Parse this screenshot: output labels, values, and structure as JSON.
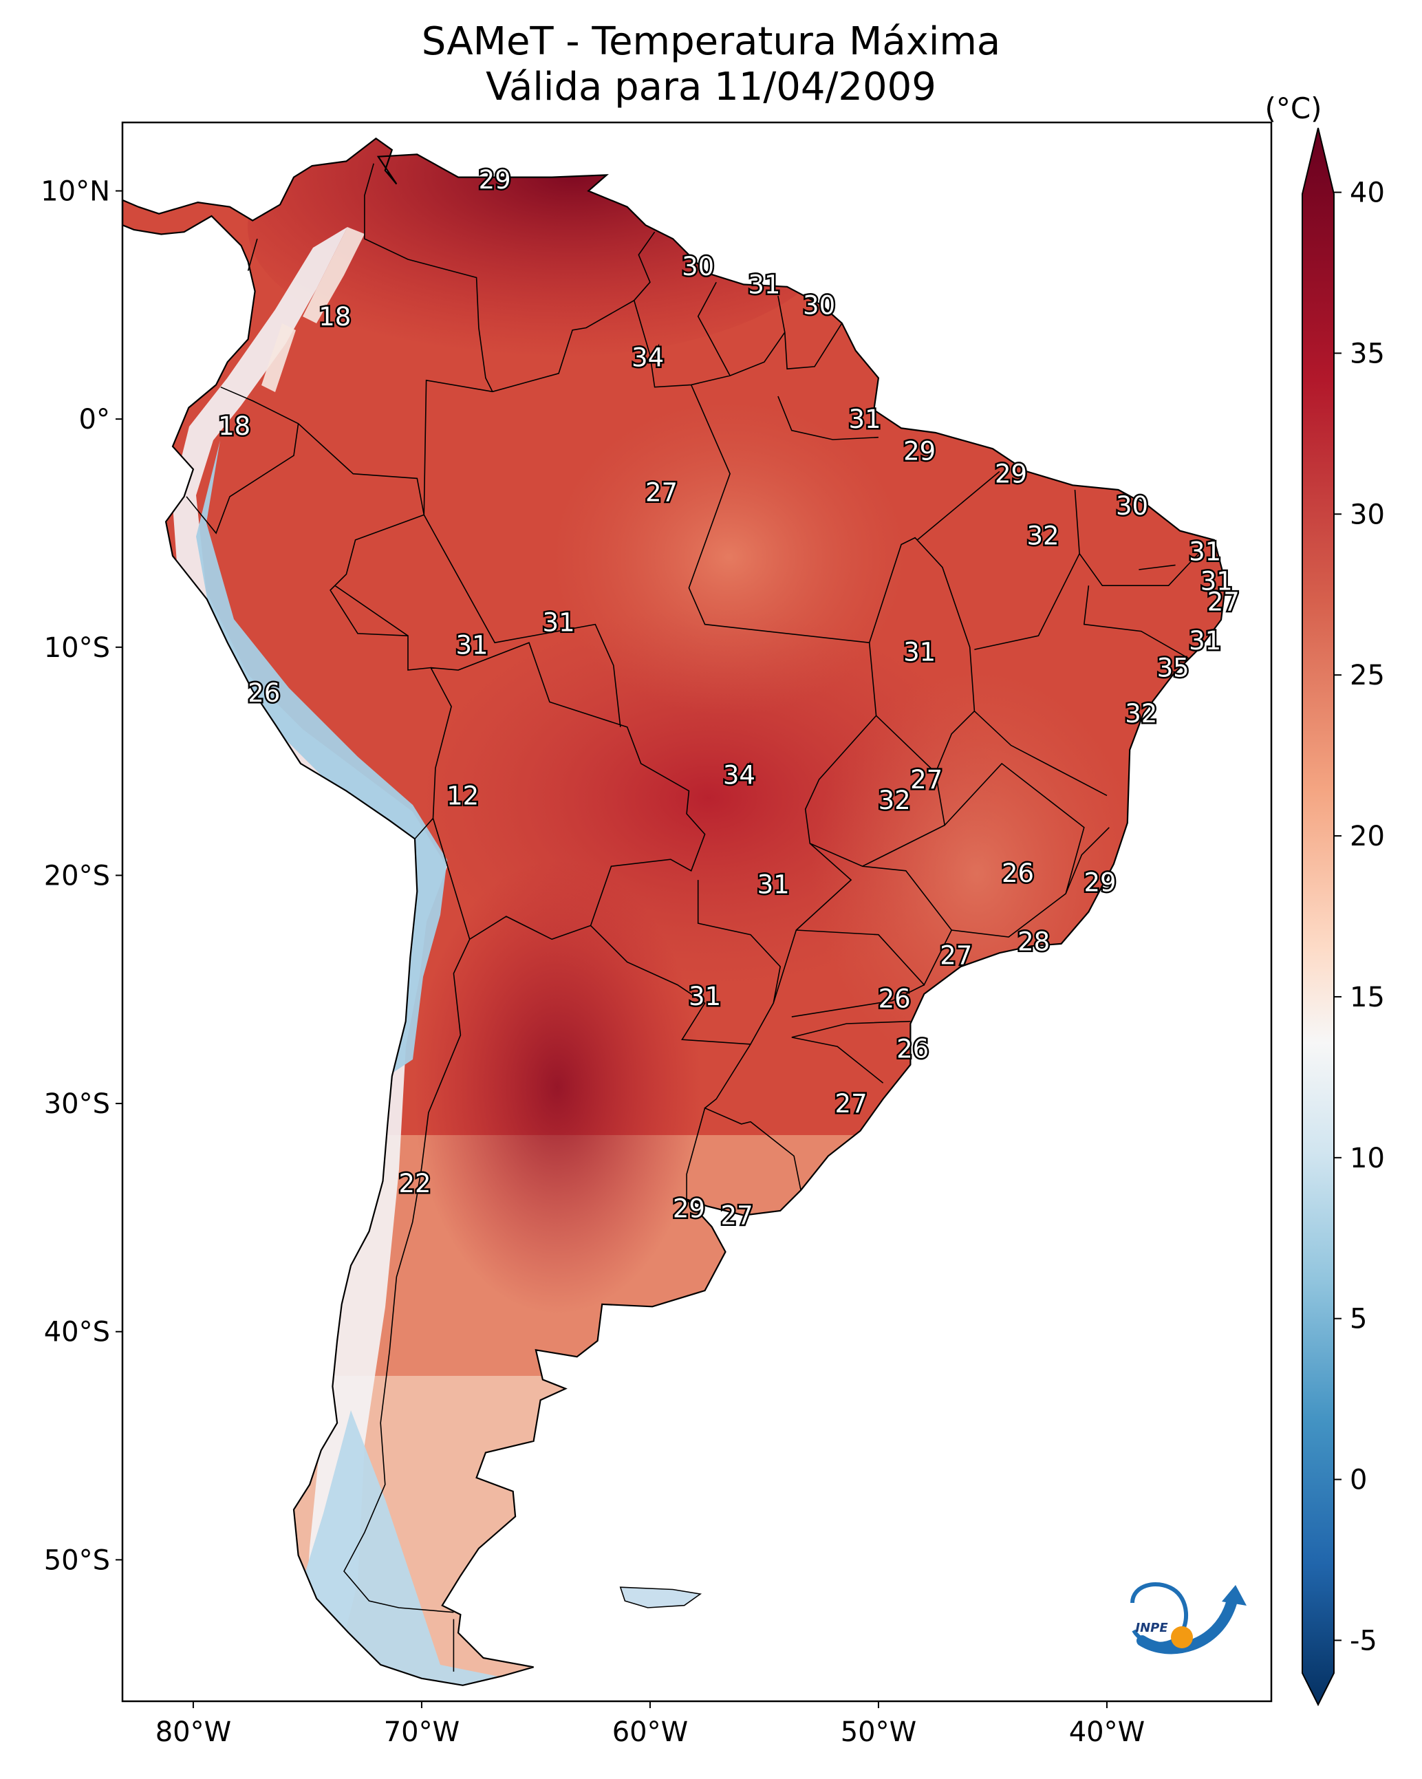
{
  "title": {
    "line1": "SAMeT - Temperatura Máxima",
    "line2": "Válida para 11/04/2009"
  },
  "axes": {
    "lat_ticks": [
      "10°N",
      "0°",
      "10°S",
      "20°S",
      "30°S",
      "40°S",
      "50°S"
    ],
    "lon_ticks": [
      "80°W",
      "70°W",
      "60°W",
      "50°W",
      "40°W"
    ]
  },
  "colorbar": {
    "unit": "(°C)",
    "min": -7,
    "max": 42,
    "ticks": [
      "40",
      "35",
      "30",
      "25",
      "20",
      "15",
      "10",
      "5",
      "0",
      "-5"
    ],
    "colors": {
      "dark_red": "#67001f",
      "red": "#b2182b",
      "salmon": "#d6604d",
      "peach": "#f4a582",
      "pale": "#fddbc7",
      "white": "#f7f7f7",
      "light_blue": "#d1e5f0",
      "sky": "#92c5de",
      "blue": "#4393c3",
      "mid_blue": "#2166ac",
      "navy": "#053061"
    }
  },
  "logo": {
    "text": "INPE",
    "icon": "inpe-logo-icon"
  },
  "station_labels": [
    {
      "value": "29",
      "lon": -66.8,
      "lat": 10.5
    },
    {
      "value": "30",
      "lon": -57.9,
      "lat": 6.7
    },
    {
      "value": "31",
      "lon": -55.0,
      "lat": 5.9
    },
    {
      "value": "30",
      "lon": -52.6,
      "lat": 5.0
    },
    {
      "value": "18",
      "lon": -73.8,
      "lat": 4.5
    },
    {
      "value": "34",
      "lon": -60.1,
      "lat": 2.7
    },
    {
      "value": "31",
      "lon": -50.6,
      "lat": 0.0
    },
    {
      "value": "18",
      "lon": -78.2,
      "lat": -0.3
    },
    {
      "value": "29",
      "lon": -48.2,
      "lat": -1.4
    },
    {
      "value": "27",
      "lon": -59.5,
      "lat": -3.2
    },
    {
      "value": "29",
      "lon": -44.2,
      "lat": -2.4
    },
    {
      "value": "30",
      "lon": -38.9,
      "lat": -3.8
    },
    {
      "value": "32",
      "lon": -42.8,
      "lat": -5.1
    },
    {
      "value": "31",
      "lon": -35.7,
      "lat": -5.8
    },
    {
      "value": "31",
      "lon": -35.2,
      "lat": -7.1
    },
    {
      "value": "27",
      "lon": -34.9,
      "lat": -8.0
    },
    {
      "value": "31",
      "lon": -64.0,
      "lat": -8.9
    },
    {
      "value": "31",
      "lon": -67.8,
      "lat": -9.9
    },
    {
      "value": "31",
      "lon": -48.2,
      "lat": -10.2
    },
    {
      "value": "31",
      "lon": -35.7,
      "lat": -9.7
    },
    {
      "value": "35",
      "lon": -37.1,
      "lat": -10.9
    },
    {
      "value": "26",
      "lon": -76.9,
      "lat": -12.0
    },
    {
      "value": "32",
      "lon": -38.5,
      "lat": -12.9
    },
    {
      "value": "27",
      "lon": -47.9,
      "lat": -15.8
    },
    {
      "value": "34",
      "lon": -56.1,
      "lat": -15.6
    },
    {
      "value": "32",
      "lon": -49.3,
      "lat": -16.7
    },
    {
      "value": "12",
      "lon": -68.2,
      "lat": -16.5
    },
    {
      "value": "26",
      "lon": -43.9,
      "lat": -19.9
    },
    {
      "value": "29",
      "lon": -40.3,
      "lat": -20.3
    },
    {
      "value": "31",
      "lon": -54.6,
      "lat": -20.4
    },
    {
      "value": "28",
      "lon": -43.2,
      "lat": -22.9
    },
    {
      "value": "27",
      "lon": -46.6,
      "lat": -23.5
    },
    {
      "value": "26",
      "lon": -49.3,
      "lat": -25.4
    },
    {
      "value": "31",
      "lon": -57.6,
      "lat": -25.3
    },
    {
      "value": "26",
      "lon": -48.5,
      "lat": -27.6
    },
    {
      "value": "27",
      "lon": -51.2,
      "lat": -30.0
    },
    {
      "value": "22",
      "lon": -70.3,
      "lat": -33.5
    },
    {
      "value": "29",
      "lon": -58.3,
      "lat": -34.6
    },
    {
      "value": "27",
      "lon": -56.2,
      "lat": -34.9
    }
  ]
}
